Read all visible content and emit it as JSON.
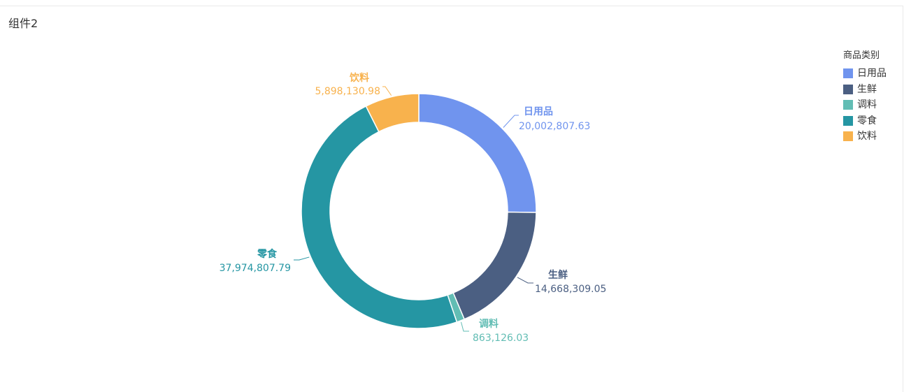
{
  "component": {
    "title": "组件2"
  },
  "legend": {
    "title": "商品类别"
  },
  "chart_data": {
    "type": "pie",
    "variant": "donut",
    "legend_position": "top-right",
    "categories": [
      "日用品",
      "生鲜",
      "调料",
      "零食",
      "饮料"
    ],
    "values": [
      20002807.63,
      14668309.05,
      863126.03,
      37974807.79,
      5898130.98
    ],
    "value_labels": [
      "20,002,807.63",
      "14,668,309.05",
      "863,126.03",
      "37,974,807.79",
      "5,898,130.98"
    ],
    "colors": [
      "#7094ee",
      "#4b5f82",
      "#62bdb4",
      "#2596a3",
      "#f8b24d"
    ]
  }
}
